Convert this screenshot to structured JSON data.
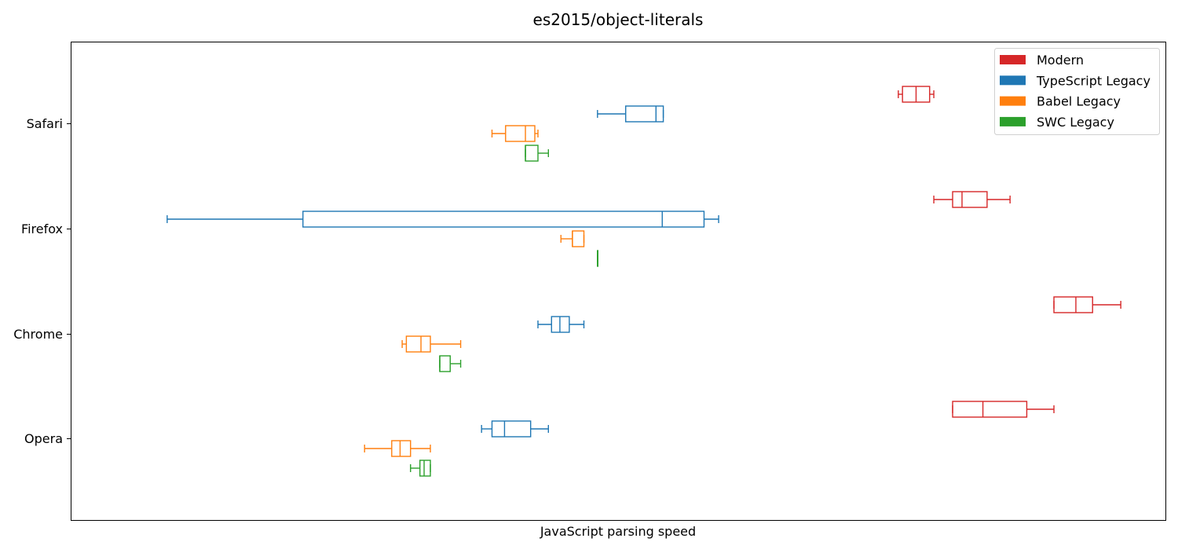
{
  "chart_data": {
    "type": "boxplot",
    "orientation": "horizontal",
    "title": "es2015/object-literals",
    "xlabel": "JavaScript parsing speed",
    "ylabel": "",
    "x_ticks_shown": false,
    "xlim": [
      0,
      100
    ],
    "grid": false,
    "legend_position": "top-right",
    "categories": [
      "Safari",
      "Firefox",
      "Chrome",
      "Opera"
    ],
    "series": [
      {
        "name": "Modern",
        "color": "#d62728",
        "boxes": [
          {
            "category": "Safari",
            "whislo": 74.5,
            "q1": 74.9,
            "med": 76.2,
            "q3": 77.5,
            "whishi": 77.9
          },
          {
            "category": "Firefox",
            "whislo": 77.9,
            "q1": 79.7,
            "med": 80.6,
            "q3": 83.0,
            "whishi": 85.2
          },
          {
            "category": "Chrome",
            "whislo": 89.4,
            "q1": 89.4,
            "med": 91.5,
            "q3": 93.1,
            "whishi": 95.8
          },
          {
            "category": "Opera",
            "whislo": 79.7,
            "q1": 79.7,
            "med": 82.6,
            "q3": 86.8,
            "whishi": 89.4
          }
        ]
      },
      {
        "name": "TypeScript Legacy",
        "color": "#1f77b4",
        "boxes": [
          {
            "category": "Safari",
            "whislo": 45.7,
            "q1": 48.4,
            "med": 51.3,
            "q3": 52.0,
            "whishi": 52.0
          },
          {
            "category": "Firefox",
            "whislo": 4.5,
            "q1": 17.5,
            "med": 51.9,
            "q3": 55.9,
            "whishi": 57.3
          },
          {
            "category": "Chrome",
            "whislo": 40.0,
            "q1": 41.3,
            "med": 42.1,
            "q3": 43.0,
            "whishi": 44.4
          },
          {
            "category": "Opera",
            "whislo": 34.6,
            "q1": 35.6,
            "med": 36.8,
            "q3": 39.3,
            "whishi": 41.0
          }
        ]
      },
      {
        "name": "Babel Legacy",
        "color": "#ff7f0e",
        "boxes": [
          {
            "category": "Safari",
            "whislo": 35.6,
            "q1": 36.9,
            "med": 38.8,
            "q3": 39.7,
            "whishi": 40.0
          },
          {
            "category": "Firefox",
            "whislo": 42.2,
            "q1": 43.3,
            "med": 43.3,
            "q3": 44.4,
            "whishi": 44.4
          },
          {
            "category": "Chrome",
            "whislo": 27.0,
            "q1": 27.4,
            "med": 28.8,
            "q3": 29.7,
            "whishi": 32.6
          },
          {
            "category": "Opera",
            "whislo": 23.4,
            "q1": 26.0,
            "med": 26.8,
            "q3": 27.8,
            "whishi": 29.7
          }
        ]
      },
      {
        "name": "SWC Legacy",
        "color": "#2ca02c",
        "boxes": [
          {
            "category": "Safari",
            "whislo": 38.8,
            "q1": 38.8,
            "med": 38.8,
            "q3": 40.0,
            "whishi": 41.0
          },
          {
            "category": "Firefox",
            "whislo": 45.7,
            "q1": 45.7,
            "med": 45.7,
            "q3": 45.7,
            "whishi": 45.7
          },
          {
            "category": "Chrome",
            "whislo": 30.6,
            "q1": 30.6,
            "med": 30.6,
            "q3": 31.6,
            "whishi": 32.6
          },
          {
            "category": "Opera",
            "whislo": 27.8,
            "q1": 28.7,
            "med": 29.1,
            "q3": 29.7,
            "whishi": 29.7
          }
        ]
      }
    ]
  }
}
